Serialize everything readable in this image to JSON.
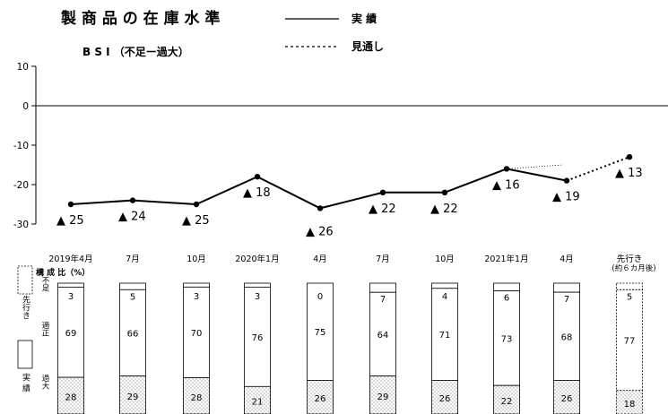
{
  "chart_data": [
    {
      "type": "line",
      "title": "製 商 品 の 在 庫 水 準",
      "subtitle": "B S I （不足ー過大）",
      "legend": [
        {
          "label": "実 績",
          "style": "solid"
        },
        {
          "label": "見通し",
          "style": "dotted"
        }
      ],
      "ylim": [
        -30,
        10
      ],
      "yticks": [
        10,
        0,
        -10,
        -20,
        -30
      ],
      "categories": [
        "2019年4月",
        "7月",
        "10月",
        "2020年1月",
        "4月",
        "7月",
        "10月",
        "2021年1月",
        "4月",
        "先行き"
      ],
      "series": [
        {
          "name": "実 績",
          "style": "solid",
          "values": [
            -25,
            -24,
            -25,
            -18,
            -26,
            -22,
            -22,
            -16,
            -19,
            null
          ]
        },
        {
          "name": "見通し",
          "style": "dotted",
          "values": [
            null,
            null,
            null,
            null,
            null,
            null,
            null,
            null,
            -19,
            -13
          ]
        }
      ],
      "previous_forecast_segment": {
        "from": -16,
        "to": -15
      },
      "point_labels": [
        "▲ 25",
        "▲ 24",
        "▲ 25",
        "▲ 18",
        "▲ 26",
        "▲ 22",
        "▲ 22",
        "▲ 16",
        "▲ 19",
        "▲ 13"
      ]
    },
    {
      "type": "bar",
      "title": "構 成 比（%）",
      "categories": [
        "2019年4月",
        "7月",
        "10月",
        "2020年1月",
        "4月",
        "7月",
        "10月",
        "2021年1月",
        "4月",
        "先行き"
      ],
      "category_note": "(約６カ月後)",
      "stack_labels": [
        "不足",
        "適正",
        "過大"
      ],
      "legend_labels": {
        "forecast": "先行き",
        "actual": "実 績"
      },
      "series": [
        {
          "name": "不足",
          "values": [
            3,
            5,
            3,
            3,
            0,
            7,
            4,
            6,
            7,
            5
          ]
        },
        {
          "name": "適正",
          "values": [
            69,
            66,
            70,
            76,
            75,
            64,
            71,
            73,
            68,
            77
          ]
        },
        {
          "name": "過大",
          "values": [
            28,
            29,
            28,
            21,
            26,
            29,
            26,
            22,
            26,
            18
          ]
        }
      ]
    }
  ]
}
